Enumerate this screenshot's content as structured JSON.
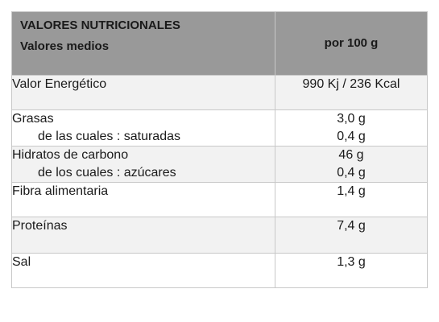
{
  "table": {
    "header": {
      "title": "VALORES NUTRICIONALES",
      "subtitle": "Valores medios",
      "per": "por 100 g"
    },
    "rows": [
      {
        "label": "Valor Energético",
        "value": "990 Kj / 236 Kcal"
      },
      {
        "label": "Grasas",
        "value": "3,0 g",
        "sub_label": "de las cuales : saturadas",
        "sub_value": "0,4 g"
      },
      {
        "label": "Hidratos de carbono",
        "value": "46 g",
        "sub_label": "de los cuales : azúcares",
        "sub_value": "0,4 g"
      },
      {
        "label": "Fibra alimentaria",
        "value": "1,4 g"
      },
      {
        "label": "Proteínas",
        "value": "7,4 g"
      },
      {
        "label": "Sal",
        "value": "1,3 g"
      }
    ]
  },
  "colors": {
    "header_bg": "#999999",
    "header_text": "#ffffff",
    "row_alt_bg": "#f2f2f2",
    "border": "#c8c8c8"
  }
}
